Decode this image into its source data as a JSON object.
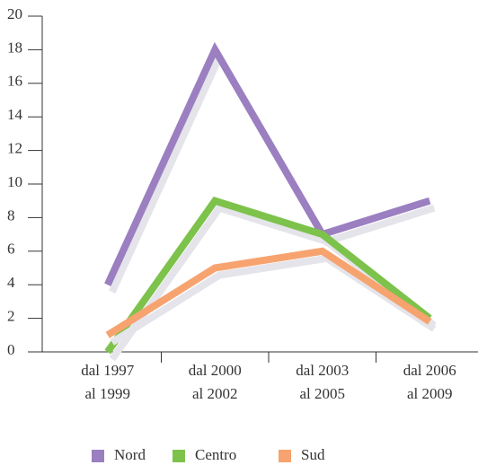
{
  "chart_data": {
    "type": "line",
    "categories": [
      [
        "dal 1997",
        "al 1999"
      ],
      [
        "dal 2000",
        "al 2002"
      ],
      [
        "dal 2003",
        "al 2005"
      ],
      [
        "dal 2006",
        "al 2009"
      ]
    ],
    "series": [
      {
        "name": "Nord",
        "color": "#9b7fc0",
        "values": [
          4,
          18,
          7,
          9
        ]
      },
      {
        "name": "Centro",
        "color": "#7dc24b",
        "values": [
          0,
          9,
          7,
          2
        ]
      },
      {
        "name": "Sud",
        "color": "#f7a36f",
        "values": [
          1,
          5,
          6,
          1.8
        ]
      }
    ],
    "ylim": [
      0,
      20
    ],
    "yticks": [
      0,
      2,
      4,
      6,
      8,
      10,
      12,
      14,
      16,
      18,
      20
    ],
    "legend": "bottom"
  }
}
